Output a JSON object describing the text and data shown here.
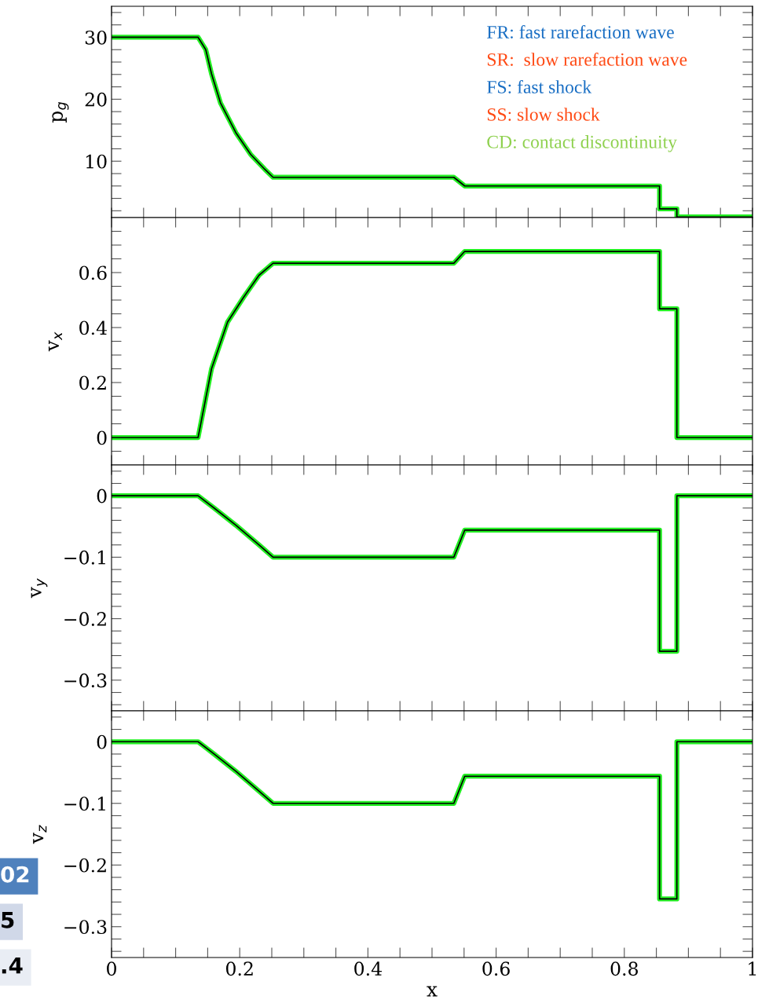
{
  "chart_data": [
    {
      "type": "line",
      "ylabel": "p$_{g}$",
      "tick_labels": "y",
      "x": [
        0,
        0.135,
        0.147,
        0.156,
        0.17,
        0.194,
        0.217,
        0.239,
        0.252,
        0.534,
        0.551,
        0.855,
        0.855,
        0.882,
        0.882,
        1
      ],
      "series": [
        {
          "color": "#22ee22",
          "values": [
            30,
            30,
            28,
            24.1,
            19.4,
            14.6,
            11.1,
            8.7,
            7.4,
            7.4,
            6.0,
            6.0,
            2.3,
            2.3,
            1.0,
            1.0
          ]
        }
      ],
      "xlim": [
        0,
        1
      ],
      "ylim": [
        0.9,
        35
      ],
      "xticks": [
        {
          "value": 0,
          "label": null
        },
        {
          "value": 0.05,
          "label": null
        },
        {
          "value": 0.1,
          "label": null
        },
        {
          "value": 0.15,
          "label": null
        },
        {
          "value": 0.2,
          "label": null
        },
        {
          "value": 0.25,
          "label": null
        },
        {
          "value": 0.3,
          "label": null
        },
        {
          "value": 0.35,
          "label": null
        },
        {
          "value": 0.4,
          "label": null
        },
        {
          "value": 0.45,
          "label": null
        },
        {
          "value": 0.5,
          "label": null
        },
        {
          "value": 0.55,
          "label": null
        },
        {
          "value": 0.6,
          "label": null
        },
        {
          "value": 0.65,
          "label": null
        },
        {
          "value": 0.7,
          "label": null
        },
        {
          "value": 0.75,
          "label": null
        },
        {
          "value": 0.8,
          "label": null
        },
        {
          "value": 0.85,
          "label": null
        },
        {
          "value": 0.9,
          "label": null
        },
        {
          "value": 0.95,
          "label": null
        },
        {
          "value": 1,
          "label": null
        }
      ],
      "yticks": [
        {
          "value": 2,
          "label": null
        },
        {
          "value": 4,
          "label": null
        },
        {
          "value": 6,
          "label": null
        },
        {
          "value": 8,
          "label": null
        },
        10,
        {
          "value": 12,
          "label": null
        },
        {
          "value": 14,
          "label": null
        },
        {
          "value": 16,
          "label": null
        },
        {
          "value": 18,
          "label": null
        },
        20,
        {
          "value": 22,
          "label": null
        },
        {
          "value": 24,
          "label": null
        },
        {
          "value": 26,
          "label": null
        },
        {
          "value": 28,
          "label": null
        },
        30,
        {
          "value": 32,
          "label": null
        },
        {
          "value": 34,
          "label": null
        }
      ],
      "annotations": [
        "FR: fast rarefaction wave",
        "SR:  slow rarefaction wave",
        "FS: fast shock",
        "SS: slow shock",
        "CD: contact discontinuity"
      ]
    },
    {
      "type": "line",
      "ylabel": "v$_{x}$",
      "tick_labels": "y",
      "x": [
        0,
        0.135,
        0.156,
        0.181,
        0.206,
        0.23,
        0.252,
        0.534,
        0.551,
        0.855,
        0.855,
        0.882,
        0.882,
        1
      ],
      "series": [
        {
          "color": "#22ee22",
          "values": [
            0,
            0,
            0.25,
            0.42,
            0.51,
            0.59,
            0.634,
            0.634,
            0.677,
            0.677,
            0.468,
            0.468,
            0,
            0
          ]
        }
      ],
      "xlim": [
        0,
        1
      ],
      "ylim": [
        -0.1,
        0.8
      ],
      "xticks": [
        {
          "value": 0,
          "label": null
        },
        {
          "value": 0.05,
          "label": null
        },
        {
          "value": 0.1,
          "label": null
        },
        {
          "value": 0.15,
          "label": null
        },
        {
          "value": 0.2,
          "label": null
        },
        {
          "value": 0.25,
          "label": null
        },
        {
          "value": 0.3,
          "label": null
        },
        {
          "value": 0.35,
          "label": null
        },
        {
          "value": 0.4,
          "label": null
        },
        {
          "value": 0.45,
          "label": null
        },
        {
          "value": 0.5,
          "label": null
        },
        {
          "value": 0.55,
          "label": null
        },
        {
          "value": 0.6,
          "label": null
        },
        {
          "value": 0.65,
          "label": null
        },
        {
          "value": 0.7,
          "label": null
        },
        {
          "value": 0.75,
          "label": null
        },
        {
          "value": 0.8,
          "label": null
        },
        {
          "value": 0.85,
          "label": null
        },
        {
          "value": 0.9,
          "label": null
        },
        {
          "value": 0.95,
          "label": null
        },
        {
          "value": 1,
          "label": null
        }
      ],
      "yticks": [
        {
          "value": -0.05,
          "label": null
        },
        0,
        {
          "value": 0.05,
          "label": null
        },
        {
          "value": 0.1,
          "label": null
        },
        {
          "value": 0.15,
          "label": null
        },
        0.2,
        {
          "value": 0.25,
          "label": null
        },
        {
          "value": 0.3,
          "label": null
        },
        {
          "value": 0.35,
          "label": null
        },
        0.4,
        {
          "value": 0.45,
          "label": null
        },
        {
          "value": 0.5,
          "label": null
        },
        {
          "value": 0.55,
          "label": null
        },
        0.6,
        {
          "value": 0.65,
          "label": null
        },
        {
          "value": 0.7,
          "label": null
        },
        {
          "value": 0.75,
          "label": null
        }
      ]
    },
    {
      "type": "line",
      "ylabel": "v$_{y}$",
      "tick_labels": "y",
      "x": [
        0,
        0.135,
        0.16,
        0.194,
        0.23,
        0.252,
        0.534,
        0.551,
        0.855,
        0.855,
        0.882,
        0.882,
        1
      ],
      "series": [
        {
          "color": "#22ee22",
          "values": [
            0,
            0,
            -0.02,
            -0.048,
            -0.08,
            -0.1,
            -0.1,
            -0.056,
            -0.056,
            -0.253,
            -0.253,
            0,
            0
          ]
        }
      ],
      "xlim": [
        0,
        1
      ],
      "ylim": [
        -0.35,
        0.05
      ],
      "xticks": [
        {
          "value": 0,
          "label": null
        },
        {
          "value": 0.05,
          "label": null
        },
        {
          "value": 0.1,
          "label": null
        },
        {
          "value": 0.15,
          "label": null
        },
        {
          "value": 0.2,
          "label": null
        },
        {
          "value": 0.25,
          "label": null
        },
        {
          "value": 0.3,
          "label": null
        },
        {
          "value": 0.35,
          "label": null
        },
        {
          "value": 0.4,
          "label": null
        },
        {
          "value": 0.45,
          "label": null
        },
        {
          "value": 0.5,
          "label": null
        },
        {
          "value": 0.55,
          "label": null
        },
        {
          "value": 0.6,
          "label": null
        },
        {
          "value": 0.65,
          "label": null
        },
        {
          "value": 0.7,
          "label": null
        },
        {
          "value": 0.75,
          "label": null
        },
        {
          "value": 0.8,
          "label": null
        },
        {
          "value": 0.85,
          "label": null
        },
        {
          "value": 0.9,
          "label": null
        },
        {
          "value": 0.95,
          "label": null
        },
        {
          "value": 1,
          "label": null
        }
      ],
      "yticks": [
        {
          "value": -0.34,
          "label": null
        },
        {
          "value": -0.32,
          "label": null
        },
        {
          "value": -0.3,
          "label": "−0.3"
        },
        {
          "value": -0.28,
          "label": null
        },
        {
          "value": -0.26,
          "label": null
        },
        {
          "value": -0.24,
          "label": null
        },
        {
          "value": -0.22,
          "label": null
        },
        {
          "value": -0.2,
          "label": "−0.2"
        },
        {
          "value": -0.18,
          "label": null
        },
        {
          "value": -0.16,
          "label": null
        },
        {
          "value": -0.14,
          "label": null
        },
        {
          "value": -0.12,
          "label": null
        },
        {
          "value": -0.1,
          "label": "−0.1"
        },
        {
          "value": -0.08,
          "label": null
        },
        {
          "value": -0.06,
          "label": null
        },
        {
          "value": -0.04,
          "label": null
        },
        {
          "value": -0.02,
          "label": null
        },
        0,
        {
          "value": 0.02,
          "label": null
        },
        {
          "value": 0.04,
          "label": null
        }
      ]
    },
    {
      "type": "line",
      "ylabel": "v$_{z}$",
      "xlabel": "x",
      "x": [
        0,
        0.135,
        0.16,
        0.194,
        0.23,
        0.252,
        0.534,
        0.551,
        0.855,
        0.855,
        0.882,
        0.882,
        1
      ],
      "series": [
        {
          "color": "#22ee22",
          "values": [
            0,
            0,
            -0.02,
            -0.048,
            -0.08,
            -0.1,
            -0.1,
            -0.056,
            -0.056,
            -0.255,
            -0.255,
            0,
            0
          ]
        }
      ],
      "xlim": [
        0,
        1
      ],
      "ylim": [
        -0.35,
        0.05
      ],
      "xticks": [
        0,
        {
          "value": 0.05,
          "label": null
        },
        {
          "value": 0.1,
          "label": null
        },
        {
          "value": 0.15,
          "label": null
        },
        0.2,
        {
          "value": 0.25,
          "label": null
        },
        {
          "value": 0.3,
          "label": null
        },
        {
          "value": 0.35,
          "label": null
        },
        0.4,
        {
          "value": 0.45,
          "label": null
        },
        {
          "value": 0.5,
          "label": null
        },
        {
          "value": 0.55,
          "label": null
        },
        0.6,
        {
          "value": 0.65,
          "label": null
        },
        {
          "value": 0.7,
          "label": null
        },
        {
          "value": 0.75,
          "label": null
        },
        0.8,
        {
          "value": 0.85,
          "label": null
        },
        {
          "value": 0.9,
          "label": null
        },
        {
          "value": 0.95,
          "label": null
        },
        1
      ],
      "yticks": [
        {
          "value": -0.34,
          "label": null
        },
        {
          "value": -0.32,
          "label": null
        },
        {
          "value": -0.3,
          "label": "−0.3"
        },
        {
          "value": -0.28,
          "label": null
        },
        {
          "value": -0.26,
          "label": null
        },
        {
          "value": -0.24,
          "label": null
        },
        {
          "value": -0.22,
          "label": null
        },
        {
          "value": -0.2,
          "label": "−0.2"
        },
        {
          "value": -0.18,
          "label": null
        },
        {
          "value": -0.16,
          "label": null
        },
        {
          "value": -0.14,
          "label": null
        },
        {
          "value": -0.12,
          "label": null
        },
        {
          "value": -0.1,
          "label": "−0.1"
        },
        {
          "value": -0.08,
          "label": null
        },
        {
          "value": -0.06,
          "label": null
        },
        {
          "value": -0.04,
          "label": null
        },
        {
          "value": -0.02,
          "label": null
        },
        0,
        {
          "value": 0.02,
          "label": null
        },
        {
          "value": 0.04,
          "label": null
        }
      ],
      "annotations": [
        "02",
        "5",
        ".4"
      ]
    }
  ]
}
